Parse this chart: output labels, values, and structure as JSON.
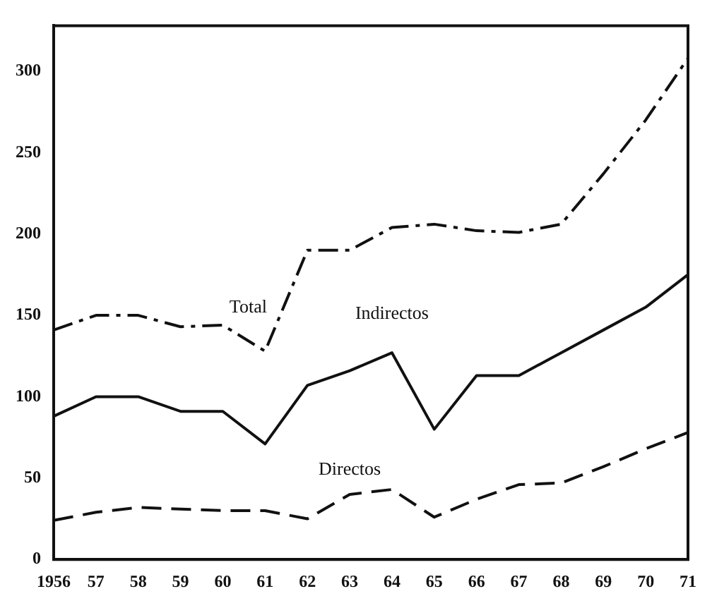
{
  "chart_data": {
    "type": "line",
    "categories": [
      "1956",
      "57",
      "58",
      "59",
      "60",
      "61",
      "62",
      "63",
      "64",
      "65",
      "66",
      "67",
      "68",
      "69",
      "70",
      "71"
    ],
    "series": [
      {
        "name": "Total",
        "color": "#111111",
        "line_style": "dashdot",
        "values": [
          141,
          150,
          150,
          143,
          144,
          128,
          190,
          190,
          204,
          206,
          202,
          201,
          206,
          237,
          270,
          308
        ]
      },
      {
        "name": "Indirectos",
        "color": "#111111",
        "line_style": "solid",
        "values": [
          88,
          100,
          100,
          91,
          91,
          71,
          107,
          116,
          127,
          80,
          113,
          113,
          127,
          141,
          155,
          175
        ]
      },
      {
        "name": "Directos",
        "color": "#111111",
        "line_style": "dashed",
        "values": [
          24,
          29,
          32,
          31,
          30,
          30,
          25,
          40,
          43,
          26,
          37,
          46,
          47,
          57,
          68,
          78
        ]
      }
    ],
    "ylim": [
      0,
      328
    ],
    "yticks": [
      0,
      50,
      100,
      150,
      200,
      250,
      300
    ],
    "grid": false,
    "legend": false,
    "marker": "none"
  }
}
